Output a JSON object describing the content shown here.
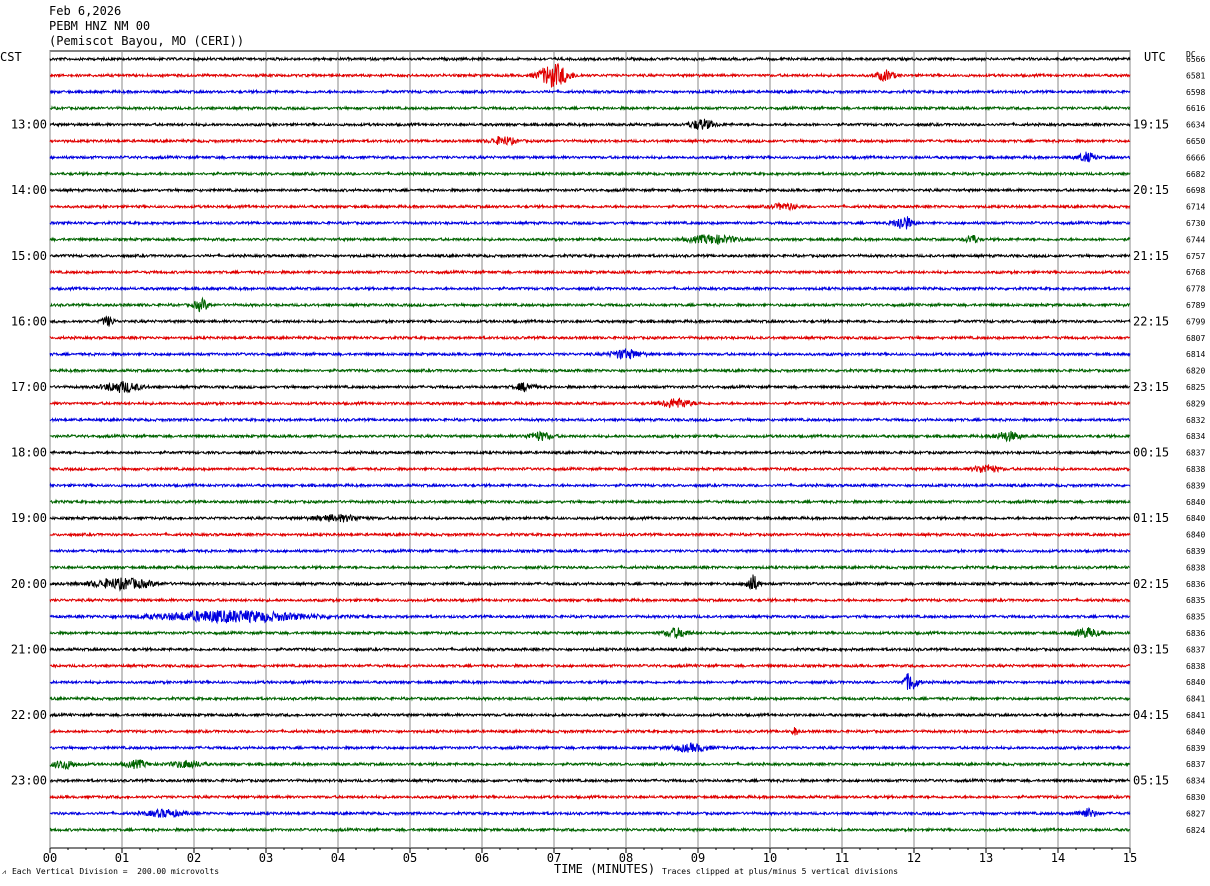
{
  "header": {
    "date": "Feb 6,2026",
    "station": "PEBM HNZ NM 00",
    "location": "(Pemiscot Bayou, MO (CERI))"
  },
  "left_corner_label": "CST",
  "right_corner_label": "UTC",
  "dc_label": "DC",
  "footer": {
    "scale": "Each Vertical Division =  200.00 microvolts",
    "clip": "Traces clipped at plus/minus 5 vertical divisions"
  },
  "chart_data": {
    "type": "line",
    "title": "",
    "xlabel": "TIME (MINUTES)",
    "xticks": [
      "00",
      "01",
      "02",
      "03",
      "04",
      "05",
      "06",
      "07",
      "08",
      "09",
      "10",
      "11",
      "12",
      "13",
      "14",
      "15"
    ],
    "xlim": [
      0,
      15
    ],
    "trace_colors": [
      "#000000",
      "#e00000",
      "#0000e0",
      "#006400"
    ],
    "left_hour_labels": [
      "13:00",
      "14:00",
      "15:00",
      "16:00",
      "17:00",
      "18:00",
      "19:00",
      "20:00",
      "21:00",
      "22:00",
      "23:00"
    ],
    "right_hour_labels": [
      "19:15",
      "20:15",
      "21:15",
      "22:15",
      "23:15",
      "00:15",
      "01:15",
      "02:15",
      "03:15",
      "04:15",
      "05:15"
    ],
    "dc_offsets": [
      "6566",
      "6581",
      "6598",
      "6616",
      "6634",
      "6650",
      "6666",
      "6682",
      "6698",
      "6714",
      "6730",
      "6744",
      "6757",
      "6768",
      "6778",
      "6789",
      "6799",
      "6807",
      "6814",
      "6820",
      "6825",
      "6829",
      "6832",
      "6834",
      "6837",
      "6838",
      "6839",
      "6840",
      "6840",
      "6840",
      "6839",
      "6838",
      "6836",
      "6835",
      "6835",
      "6836",
      "6837",
      "6838",
      "6840",
      "6841",
      "6841",
      "6840",
      "6839",
      "6837",
      "6834",
      "6830",
      "6827",
      "6824"
    ],
    "events": [
      {
        "trace": 1,
        "minute": 7.0,
        "amp": 4.5,
        "width": 0.25
      },
      {
        "trace": 1,
        "minute": 11.6,
        "amp": 2.0,
        "width": 0.15
      },
      {
        "trace": 4,
        "minute": 9.05,
        "amp": 2.0,
        "width": 0.2
      },
      {
        "trace": 5,
        "minute": 6.3,
        "amp": 1.6,
        "width": 0.2
      },
      {
        "trace": 6,
        "minute": 14.4,
        "amp": 1.8,
        "width": 0.15
      },
      {
        "trace": 9,
        "minute": 10.2,
        "amp": 1.2,
        "width": 0.2
      },
      {
        "trace": 10,
        "minute": 11.85,
        "amp": 2.8,
        "width": 0.15
      },
      {
        "trace": 11,
        "minute": 9.2,
        "amp": 1.6,
        "width": 0.4
      },
      {
        "trace": 11,
        "minute": 12.8,
        "amp": 1.8,
        "width": 0.1
      },
      {
        "trace": 15,
        "minute": 2.1,
        "amp": 2.2,
        "width": 0.12
      },
      {
        "trace": 16,
        "minute": 0.8,
        "amp": 1.8,
        "width": 0.1
      },
      {
        "trace": 18,
        "minute": 8.0,
        "amp": 1.8,
        "width": 0.25
      },
      {
        "trace": 20,
        "minute": 1.0,
        "amp": 2.0,
        "width": 0.3
      },
      {
        "trace": 20,
        "minute": 6.6,
        "amp": 1.6,
        "width": 0.15
      },
      {
        "trace": 21,
        "minute": 8.7,
        "amp": 1.8,
        "width": 0.25
      },
      {
        "trace": 23,
        "minute": 6.8,
        "amp": 1.6,
        "width": 0.2
      },
      {
        "trace": 23,
        "minute": 13.3,
        "amp": 1.8,
        "width": 0.2
      },
      {
        "trace": 25,
        "minute": 13.0,
        "amp": 1.6,
        "width": 0.2
      },
      {
        "trace": 28,
        "minute": 4.0,
        "amp": 1.2,
        "width": 0.4
      },
      {
        "trace": 32,
        "minute": 9.75,
        "amp": 3.5,
        "width": 0.1
      },
      {
        "trace": 32,
        "minute": 1.0,
        "amp": 2.0,
        "width": 0.5
      },
      {
        "trace": 34,
        "minute": 2.5,
        "amp": 2.2,
        "width": 1.2
      },
      {
        "trace": 35,
        "minute": 8.7,
        "amp": 1.8,
        "width": 0.2
      },
      {
        "trace": 35,
        "minute": 14.4,
        "amp": 1.8,
        "width": 0.2
      },
      {
        "trace": 38,
        "minute": 11.95,
        "amp": 3.5,
        "width": 0.12
      },
      {
        "trace": 41,
        "minute": 10.35,
        "amp": 1.5,
        "width": 0.05
      },
      {
        "trace": 42,
        "minute": 8.9,
        "amp": 1.4,
        "width": 0.3
      },
      {
        "trace": 43,
        "minute": 0.2,
        "amp": 1.6,
        "width": 0.2
      },
      {
        "trace": 43,
        "minute": 1.2,
        "amp": 1.4,
        "width": 0.2
      },
      {
        "trace": 43,
        "minute": 1.9,
        "amp": 1.4,
        "width": 0.25
      },
      {
        "trace": 46,
        "minute": 1.6,
        "amp": 1.4,
        "width": 0.3
      },
      {
        "trace": 46,
        "minute": 14.4,
        "amp": 1.8,
        "width": 0.15
      }
    ]
  }
}
